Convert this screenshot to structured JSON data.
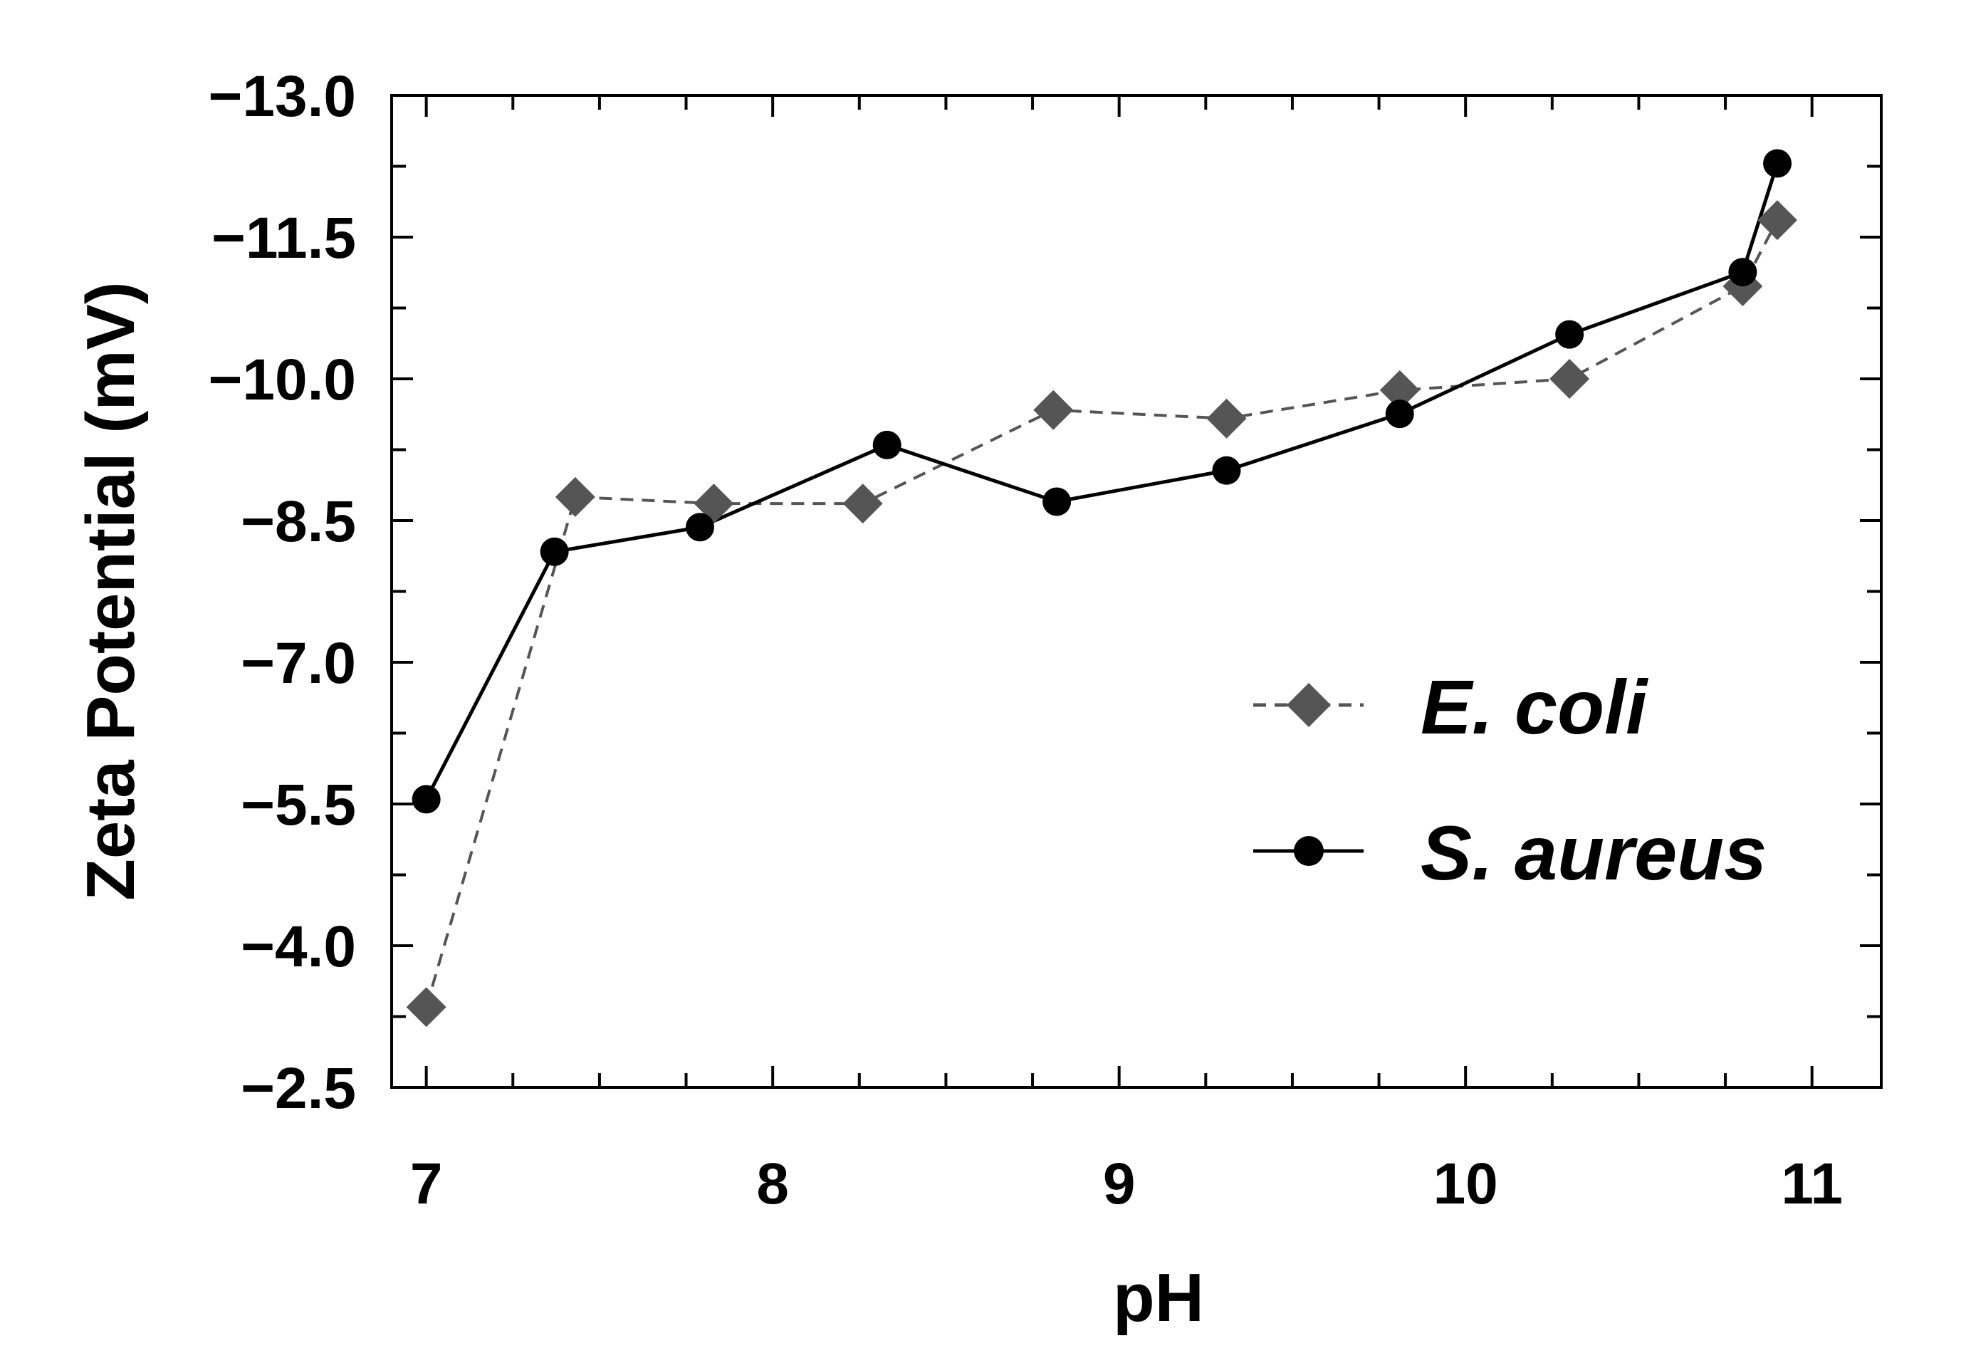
{
  "chart_data": {
    "type": "line",
    "xlabel": "pH",
    "ylabel": "Zeta Potential (mV)",
    "xlim": [
      6.9,
      11.2
    ],
    "ylim": [
      -2.5,
      -13.0
    ],
    "x_ticks": [
      "7",
      "8",
      "9",
      "10",
      "11"
    ],
    "y_ticks": [
      "−13.0",
      "−11.5",
      "−10.0",
      "−8.5",
      "−7.0",
      "−5.5",
      "−4.0",
      "−2.5"
    ],
    "grid": false,
    "legend_position": "right-center",
    "series": [
      {
        "name": "E. coli",
        "marker": "diamond",
        "line_style": "dashed",
        "color": "#555555",
        "x": [
          7.0,
          7.43,
          7.83,
          8.26,
          8.81,
          9.31,
          9.81,
          10.3,
          10.8,
          10.9
        ],
        "y": [
          -3.35,
          -8.75,
          -8.68,
          -8.68,
          -9.67,
          -9.58,
          -9.88,
          -10.0,
          -10.98,
          -11.68
        ]
      },
      {
        "name": "S. aureus",
        "marker": "circle",
        "line_style": "solid",
        "color": "#000000",
        "x": [
          7.0,
          7.37,
          7.79,
          8.33,
          8.82,
          9.31,
          9.81,
          10.3,
          10.8,
          10.9
        ],
        "y": [
          -5.55,
          -8.17,
          -8.43,
          -9.3,
          -8.7,
          -9.03,
          -9.63,
          -10.47,
          -11.13,
          -12.28
        ]
      }
    ]
  }
}
